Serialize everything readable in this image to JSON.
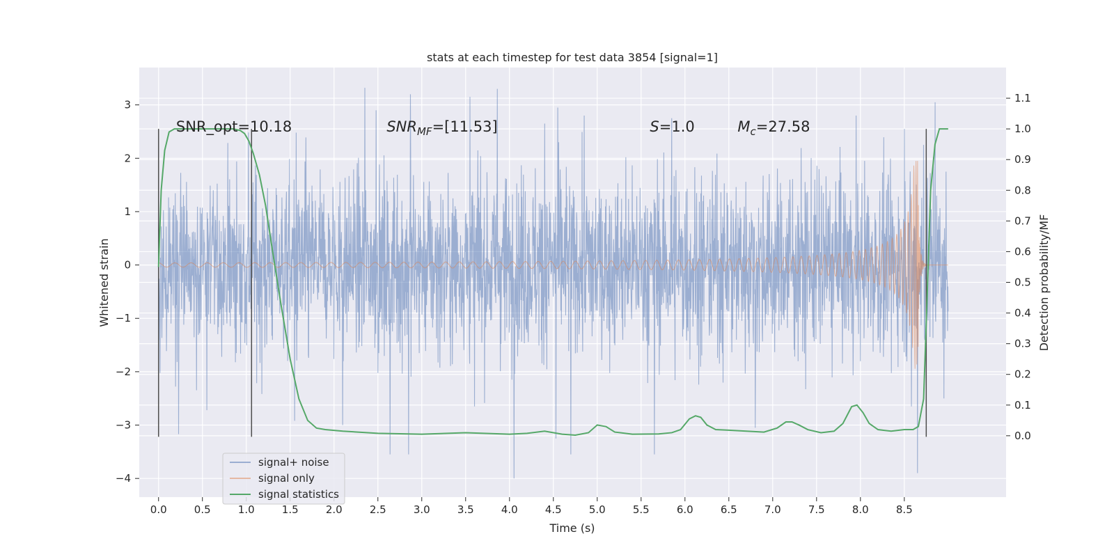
{
  "chart_data": {
    "type": "line",
    "title": "stats at each timestep for test data 3854 [signal=1]",
    "xlabel": "Time (s)",
    "ylabel": "Whitened strain",
    "y2label": "Detection probability/MF",
    "xlim": [
      -0.22,
      9.66
    ],
    "ylim": [
      -4.35,
      3.7
    ],
    "y2lim": [
      -0.2,
      1.2
    ],
    "xticks": [
      "0.0",
      "0.5",
      "1.0",
      "1.5",
      "2.0",
      "2.5",
      "3.0",
      "3.5",
      "4.0",
      "4.5",
      "5.0",
      "5.5",
      "6.0",
      "6.5",
      "7.0",
      "7.5",
      "8.0",
      "8.5"
    ],
    "yticks": [
      "3",
      "2",
      "1",
      "0",
      "−1",
      "−2",
      "−3",
      "−4"
    ],
    "y2ticks": [
      "1.1",
      "1.0",
      "0.9",
      "0.8",
      "0.7",
      "0.6",
      "0.5",
      "0.4",
      "0.3",
      "0.2",
      "0.1",
      "0.0"
    ],
    "grid": true,
    "legend_position": "lower-left",
    "annotations": [
      {
        "id": "snr-opt",
        "text": "SNR_opt=10.18",
        "x": 0.2,
        "y": 2.5
      },
      {
        "id": "snr-mf",
        "base": "SNR",
        "sub": "MF",
        "rest": "=[11.53]",
        "x": 2.6,
        "y": 2.5
      },
      {
        "id": "s-value",
        "base": "S",
        "rest": "=1.0",
        "x": 5.6,
        "y": 2.5
      },
      {
        "id": "mc-value",
        "base": "M",
        "sub": "c",
        "rest": "=27.58",
        "x": 6.6,
        "y": 2.5
      }
    ],
    "vlines": [
      {
        "x": 0.0,
        "ymin": -3.22,
        "ymax": 2.55
      },
      {
        "x": 1.06,
        "ymin": -3.22,
        "ymax": 2.55
      },
      {
        "x": 8.75,
        "ymin": -3.22,
        "ymax": 2.55
      }
    ],
    "series": [
      {
        "name": "signal+ noise",
        "color": "#4c72b0",
        "duration": 9.0,
        "typical_amplitude": 1.4,
        "spikes": [
          [
            0.23,
            -3.17
          ],
          [
            0.55,
            -2.72
          ],
          [
            1.55,
            -2.92
          ],
          [
            1.57,
            2.48
          ],
          [
            2.1,
            -3.0
          ],
          [
            2.35,
            3.32
          ],
          [
            2.48,
            2.9
          ],
          [
            2.64,
            -3.55
          ],
          [
            2.85,
            -3.55
          ],
          [
            2.87,
            3.2
          ],
          [
            3.55,
            3.15
          ],
          [
            3.6,
            -2.65
          ],
          [
            3.86,
            3.3
          ],
          [
            4.05,
            -4.0
          ],
          [
            4.4,
            2.65
          ],
          [
            4.53,
            -3.25
          ],
          [
            4.55,
            2.95
          ],
          [
            4.7,
            -3.55
          ],
          [
            4.85,
            2.8
          ],
          [
            5.65,
            -3.55
          ],
          [
            5.85,
            2.75
          ],
          [
            6.8,
            -3.05
          ],
          [
            7.95,
            2.8
          ],
          [
            8.5,
            2.55
          ],
          [
            8.58,
            -2.65
          ],
          [
            8.65,
            -3.9
          ],
          [
            8.72,
            2.25
          ],
          [
            8.85,
            3.05
          ],
          [
            8.95,
            -2.5
          ]
        ]
      },
      {
        "name": "signal only",
        "color": "#dd8452",
        "merger_time": 8.66,
        "peak_amplitude": 1.95
      },
      {
        "name": "signal statistics",
        "color": "#55a868",
        "axis": "right",
        "x": [
          0.0,
          0.03,
          0.07,
          0.12,
          0.18,
          0.3,
          0.5,
          0.7,
          0.85,
          0.93,
          0.98,
          1.03,
          1.08,
          1.15,
          1.22,
          1.3,
          1.4,
          1.5,
          1.6,
          1.7,
          1.8,
          1.9,
          2.1,
          2.5,
          3.0,
          3.5,
          4.0,
          4.2,
          4.4,
          4.6,
          4.75,
          4.9,
          5.0,
          5.1,
          5.2,
          5.4,
          5.7,
          5.85,
          5.95,
          6.05,
          6.12,
          6.18,
          6.25,
          6.35,
          6.5,
          6.7,
          6.9,
          7.05,
          7.15,
          7.22,
          7.3,
          7.4,
          7.55,
          7.7,
          7.8,
          7.9,
          7.96,
          8.03,
          8.1,
          8.2,
          8.35,
          8.5,
          8.6,
          8.66,
          8.72,
          8.76,
          8.8,
          8.85,
          8.9,
          8.95,
          9.0
        ],
        "values": [
          0.55,
          0.8,
          0.93,
          0.99,
          1.0,
          1.0,
          1.0,
          1.0,
          1.0,
          0.995,
          0.985,
          0.96,
          0.92,
          0.85,
          0.75,
          0.6,
          0.42,
          0.25,
          0.12,
          0.05,
          0.025,
          0.02,
          0.015,
          0.008,
          0.005,
          0.01,
          0.005,
          0.008,
          0.015,
          0.005,
          0.002,
          0.01,
          0.035,
          0.03,
          0.012,
          0.005,
          0.006,
          0.01,
          0.02,
          0.055,
          0.065,
          0.06,
          0.035,
          0.02,
          0.018,
          0.015,
          0.012,
          0.025,
          0.045,
          0.045,
          0.035,
          0.02,
          0.01,
          0.015,
          0.04,
          0.095,
          0.1,
          0.075,
          0.04,
          0.02,
          0.015,
          0.02,
          0.02,
          0.03,
          0.12,
          0.45,
          0.8,
          0.95,
          1.0,
          1.0,
          1.0
        ]
      }
    ]
  }
}
